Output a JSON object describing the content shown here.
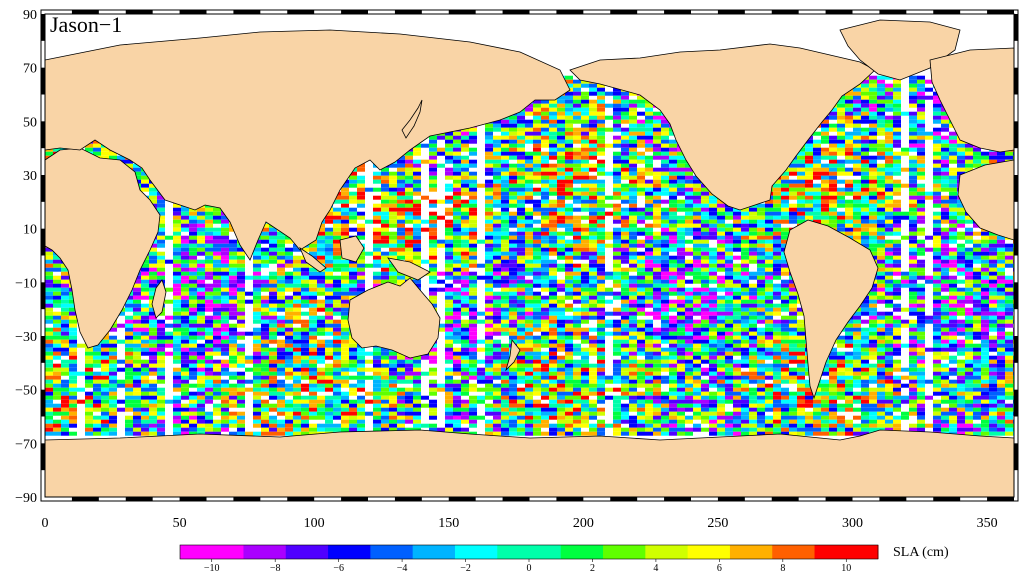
{
  "map": {
    "title": "Jason−1",
    "variable": "SLA",
    "x_ticks": [
      "0",
      "50",
      "100",
      "150",
      "200",
      "250",
      "300",
      "350"
    ],
    "x_tick_values": [
      0,
      50,
      100,
      150,
      200,
      250,
      300,
      350
    ],
    "y_ticks": [
      "90",
      "70",
      "50",
      "30",
      "10",
      "−10",
      "−30",
      "−50",
      "−70",
      "−90"
    ],
    "y_tick_values": [
      90,
      70,
      50,
      30,
      10,
      -10,
      -30,
      -50,
      -70,
      -90
    ],
    "lon_range": [
      0,
      360
    ],
    "lat_range": [
      -90,
      90
    ],
    "colors": {
      "land": "#f9d4a6",
      "no_data": "#ffffff",
      "coast": "#000000"
    }
  },
  "colorbar": {
    "unit_label": "SLA (cm)",
    "tick_labels": [
      "−10",
      "−8",
      "−6",
      "−4",
      "−2",
      "0",
      "2",
      "4",
      "6",
      "8",
      "10"
    ],
    "tick_values": [
      -10,
      -8,
      -6,
      -4,
      -2,
      0,
      2,
      4,
      6,
      8,
      10
    ],
    "range": [
      -11,
      11
    ],
    "colors": [
      "#ff00ff",
      "#aa00ff",
      "#5000ff",
      "#0000ff",
      "#0060ff",
      "#00b4ff",
      "#00ffff",
      "#00ffaa",
      "#00ff40",
      "#60ff00",
      "#d0ff00",
      "#ffff00",
      "#ffb000",
      "#ff6000",
      "#ff0000"
    ]
  }
}
